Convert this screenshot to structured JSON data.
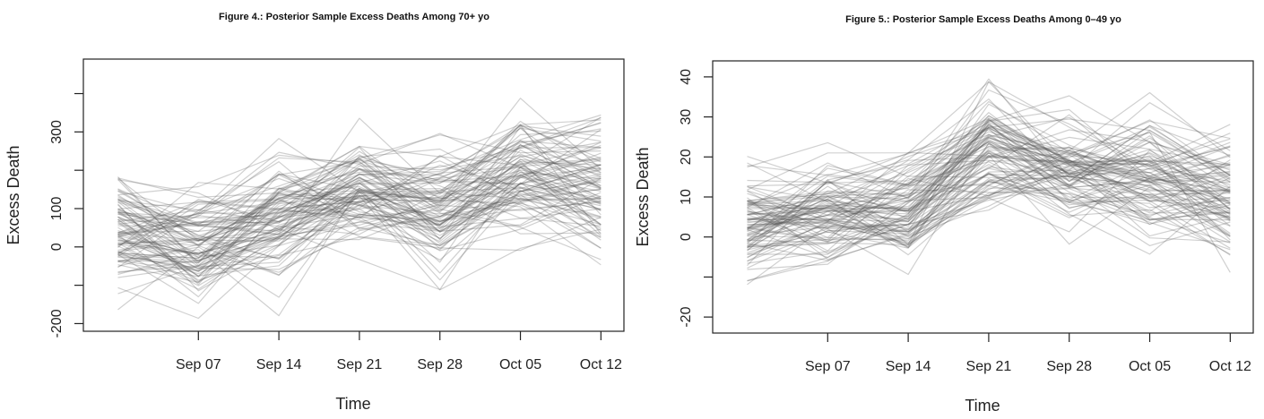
{
  "chart_data": [
    {
      "type": "line",
      "title": "Figure 4.: Posterior Sample Excess Deaths Among 70+ yo",
      "xlabel": "Time",
      "ylabel": "Excess Death",
      "x_ticks": [
        "Sep 07",
        "Sep 14",
        "Sep 21",
        "Sep 28",
        "Oct 05",
        "Oct 12"
      ],
      "y_ticks": [
        -200,
        0,
        100,
        300
      ],
      "y_ticks_extra": [
        -100,
        200,
        400
      ],
      "ylim": [
        -220,
        490
      ],
      "x": [
        "2020-08-31",
        "2020-09-07",
        "2020-09-14",
        "2020-09-21",
        "2020-09-28",
        "2020-10-05",
        "2020-10-12"
      ],
      "xlim": [
        "2020-08-28",
        "2020-10-14"
      ],
      "line_color": "#555555",
      "series_summary": {
        "count": 100,
        "median": [
          40,
          10,
          80,
          140,
          100,
          190,
          160
        ],
        "spread": [
          85,
          75,
          80,
          80,
          85,
          95,
          95
        ]
      }
    },
    {
      "type": "line",
      "title": "Figure 5.: Posterior Sample Excess Deaths Among 0–49 yo",
      "xlabel": "Time",
      "ylabel": "Excess Death",
      "x_ticks": [
        "Sep 07",
        "Sep 14",
        "Sep 21",
        "Sep 28",
        "Oct 05",
        "Oct 12"
      ],
      "y_ticks": [
        -20,
        0,
        10,
        20,
        30,
        40
      ],
      "y_ticks_extra": [
        -10
      ],
      "ylim": [
        -24,
        44
      ],
      "x": [
        "2020-08-31",
        "2020-09-07",
        "2020-09-14",
        "2020-09-21",
        "2020-09-28",
        "2020-10-05",
        "2020-10-12"
      ],
      "xlim": [
        "2020-08-28",
        "2020-10-14"
      ],
      "line_color": "#555555",
      "series_summary": {
        "count": 100,
        "median": [
          4,
          7,
          8,
          21,
          17,
          15,
          10
        ],
        "spread": [
          8,
          7,
          8,
          8,
          7,
          8,
          8
        ]
      }
    }
  ]
}
